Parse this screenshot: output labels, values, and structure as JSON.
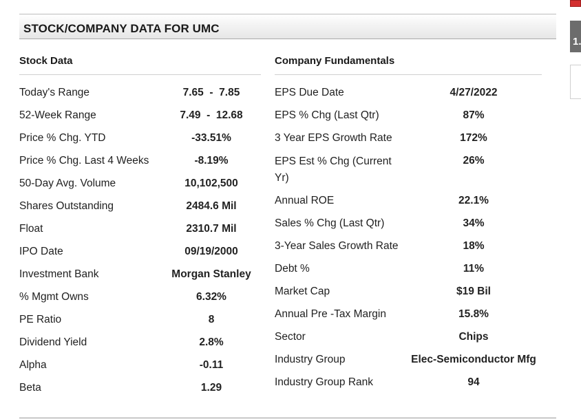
{
  "header": {
    "title": "STOCK/COMPANY DATA FOR UMC"
  },
  "stock_data": {
    "heading": "Stock Data",
    "rows": [
      {
        "label": "Today's Range",
        "value": "7.65  -  7.85"
      },
      {
        "label": "52-Week Range",
        "value": "7.49  -  12.68"
      },
      {
        "label": "Price % Chg. YTD",
        "value": "-33.51%"
      },
      {
        "label": "Price % Chg. Last 4 Weeks",
        "value": "-8.19%"
      },
      {
        "label": "50-Day Avg. Volume",
        "value": "10,102,500"
      },
      {
        "label": "Shares Outstanding",
        "value": "2484.6 Mil"
      },
      {
        "label": "Float",
        "value": "2310.7 Mil"
      },
      {
        "label": "IPO Date",
        "value": "09/19/2000"
      },
      {
        "label": "Investment Bank",
        "value": "Morgan Stanley"
      },
      {
        "label": "% Mgmt Owns",
        "value": "6.32%"
      },
      {
        "label": "PE Ratio",
        "value": "8"
      },
      {
        "label": "Dividend Yield",
        "value": "2.8%"
      },
      {
        "label": "Alpha",
        "value": "-0.11"
      },
      {
        "label": "Beta",
        "value": "1.29"
      }
    ]
  },
  "company_fundamentals": {
    "heading": "Company Fundamentals",
    "rows": [
      {
        "label": "EPS Due Date",
        "value": "4/27/2022"
      },
      {
        "label": "EPS % Chg (Last Qtr)",
        "value": "87%"
      },
      {
        "label": "3 Year EPS Growth Rate",
        "value": "172%"
      },
      {
        "label": "EPS Est % Chg (Current Yr)",
        "value": "26%"
      },
      {
        "label": "Annual ROE",
        "value": "22.1%"
      },
      {
        "label": "Sales % Chg (Last Qtr)",
        "value": "34%"
      },
      {
        "label": "3-Year Sales Growth Rate",
        "value": "18%"
      },
      {
        "label": "Debt %",
        "value": "11%"
      },
      {
        "label": "Market Cap",
        "value": "$19 Bil"
      },
      {
        "label": "Annual Pre -Tax Margin",
        "value": "15.8%"
      },
      {
        "label": "Sector",
        "value": "Chips"
      },
      {
        "label": "Industry Group",
        "value": "Elec-Semiconductor Mfg"
      },
      {
        "label": "Industry Group Rank",
        "value": "94"
      }
    ]
  },
  "edge_widget": {
    "label": "1."
  },
  "colors": {
    "edge_red": "#d32f2f",
    "edge_dark": "#6c6c6c"
  }
}
